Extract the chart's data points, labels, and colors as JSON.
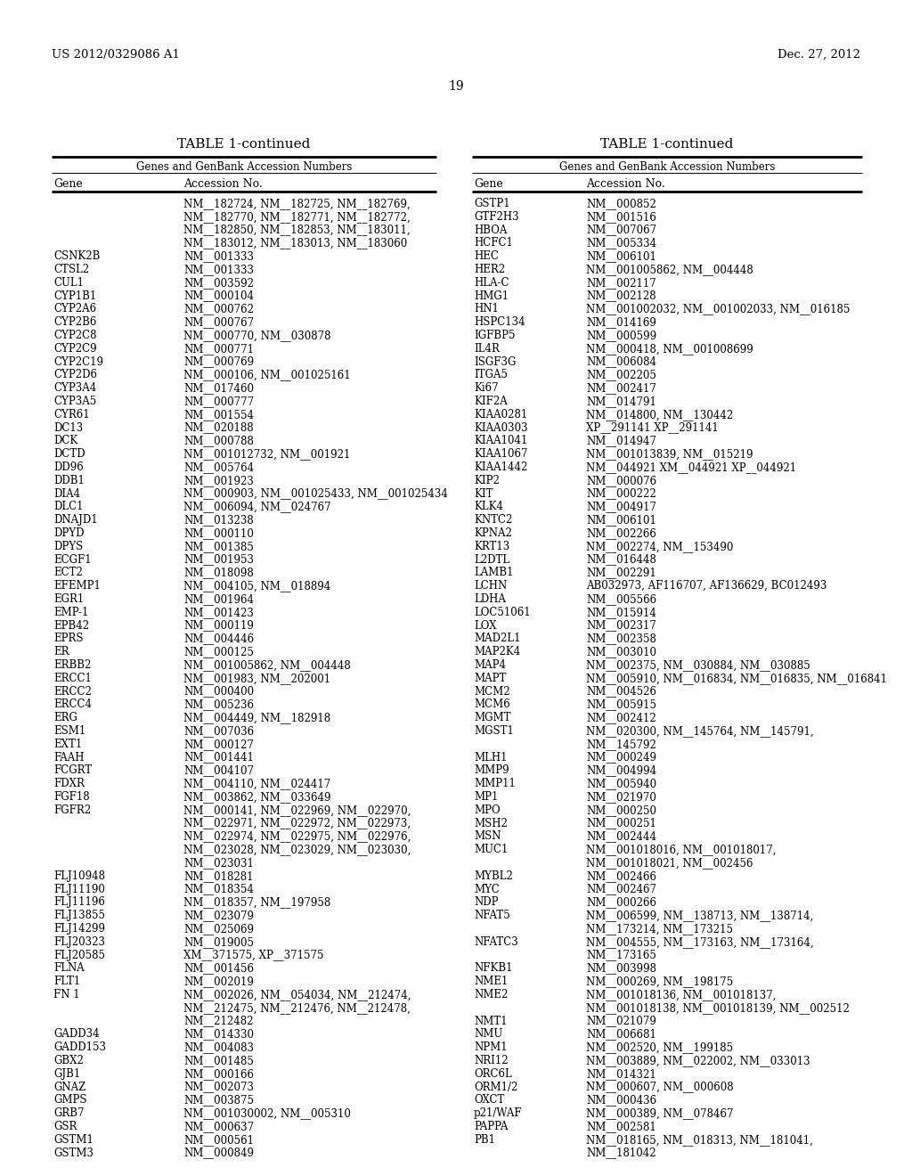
{
  "header_left": "US 2012/0329086 A1",
  "header_right": "Dec. 27, 2012",
  "page_number": "19",
  "table_title": "TABLE 1-continued",
  "left_table": [
    [
      "",
      "NM__182724, NM__182725, NM__182769,"
    ],
    [
      "",
      "NM__182770, NM__182771, NM__182772,"
    ],
    [
      "",
      "NM__182850, NM__182853, NM__183011,"
    ],
    [
      "",
      "NM__183012, NM__183013, NM__183060"
    ],
    [
      "CSNK2B",
      "NM__001333"
    ],
    [
      "CTSL2",
      "NM__001333"
    ],
    [
      "CUL1",
      "NM__003592"
    ],
    [
      "CYP1B1",
      "NM__000104"
    ],
    [
      "CYP2A6",
      "NM__000762"
    ],
    [
      "CYP2B6",
      "NM__000767"
    ],
    [
      "CYP2C8",
      "NM__000770, NM__030878"
    ],
    [
      "CYP2C9",
      "NM__000771"
    ],
    [
      "CYP2C19",
      "NM__000769"
    ],
    [
      "CYP2D6",
      "NM__000106, NM__001025161"
    ],
    [
      "CYP3A4",
      "NM__017460"
    ],
    [
      "CYP3A5",
      "NM__000777"
    ],
    [
      "CYR61",
      "NM__001554"
    ],
    [
      "DC13",
      "NM__020188"
    ],
    [
      "DCK",
      "NM__000788"
    ],
    [
      "DCTD",
      "NM__001012732, NM__001921"
    ],
    [
      "DD96",
      "NM__005764"
    ],
    [
      "DDB1",
      "NM__001923"
    ],
    [
      "DIA4",
      "NM__000903, NM__001025433, NM__001025434"
    ],
    [
      "DLC1",
      "NM__006094, NM__024767"
    ],
    [
      "DNAJD1",
      "NM__013238"
    ],
    [
      "DPYD",
      "NM__000110"
    ],
    [
      "DPYS",
      "NM__001385"
    ],
    [
      "ECGF1",
      "NM__001953"
    ],
    [
      "ECT2",
      "NM__018098"
    ],
    [
      "EFEMP1",
      "NM__004105, NM__018894"
    ],
    [
      "EGR1",
      "NM__001964"
    ],
    [
      "EMP-1",
      "NM__001423"
    ],
    [
      "EPB42",
      "NM__000119"
    ],
    [
      "EPRS",
      "NM__004446"
    ],
    [
      "ER",
      "NM__000125"
    ],
    [
      "ERBB2",
      "NM__001005862, NM__004448"
    ],
    [
      "ERCC1",
      "NM__001983, NM__202001"
    ],
    [
      "ERCC2",
      "NM__000400"
    ],
    [
      "ERCC4",
      "NM__005236"
    ],
    [
      "ERG",
      "NM__004449, NM__182918"
    ],
    [
      "ESM1",
      "NM__007036"
    ],
    [
      "EXT1",
      "NM__000127"
    ],
    [
      "FAAH",
      "NM__001441"
    ],
    [
      "FCGRT",
      "NM__004107"
    ],
    [
      "FDXR",
      "NM__004110, NM__024417"
    ],
    [
      "FGF18",
      "NM__003862, NM__033649"
    ],
    [
      "FGFR2",
      "NM__000141, NM__022969, NM__022970,"
    ],
    [
      "",
      "NM__022971, NM__022972, NM__022973,"
    ],
    [
      "",
      "NM__022974, NM__022975, NM__022976,"
    ],
    [
      "",
      "NM__023028, NM__023029, NM__023030,"
    ],
    [
      "",
      "NM__023031"
    ],
    [
      "FLJ10948",
      "NM__018281"
    ],
    [
      "FLJ11190",
      "NM__018354"
    ],
    [
      "FLJ11196",
      "NM__018357, NM__197958"
    ],
    [
      "FLJ13855",
      "NM__023079"
    ],
    [
      "FLJ14299",
      "NM__025069"
    ],
    [
      "FLJ20323",
      "NM__019005"
    ],
    [
      "FLJ20585",
      "XM__371575, XP__371575"
    ],
    [
      "FLNA",
      "NM__001456"
    ],
    [
      "FLT1",
      "NM__002019"
    ],
    [
      "FN 1",
      "NM__002026, NM__054034, NM__212474,"
    ],
    [
      "",
      "NM__212475, NM__212476, NM__212478,"
    ],
    [
      "",
      "NM__212482"
    ],
    [
      "GADD34",
      "NM__014330"
    ],
    [
      "GADD153",
      "NM__004083"
    ],
    [
      "GBX2",
      "NM__001485"
    ],
    [
      "GJB1",
      "NM__000166"
    ],
    [
      "GNAZ",
      "NM__002073"
    ],
    [
      "GMPS",
      "NM__003875"
    ],
    [
      "GRB7",
      "NM__001030002, NM__005310"
    ],
    [
      "GSR",
      "NM__000637"
    ],
    [
      "GSTM1",
      "NM__000561"
    ],
    [
      "GSTM3",
      "NM__000849"
    ]
  ],
  "right_table": [
    [
      "GSTP1",
      "NM__000852"
    ],
    [
      "GTF2H3",
      "NM__001516"
    ],
    [
      "HBOA",
      "NM__007067"
    ],
    [
      "HCFC1",
      "NM__005334"
    ],
    [
      "HEC",
      "NM__006101"
    ],
    [
      "HER2",
      "NM__001005862, NM__004448"
    ],
    [
      "HLA-C",
      "NM__002117"
    ],
    [
      "HMG1",
      "NM__002128"
    ],
    [
      "HN1",
      "NM__001002032, NM__001002033, NM__016185"
    ],
    [
      "HSPC134",
      "NM__014169"
    ],
    [
      "IGFBP5",
      "NM__000599"
    ],
    [
      "IL4R",
      "NM__000418, NM__001008699"
    ],
    [
      "ISGF3G",
      "NM__006084"
    ],
    [
      "ITGA5",
      "NM__002205"
    ],
    [
      "Ki67",
      "NM__002417"
    ],
    [
      "KIF2A",
      "NM__014791"
    ],
    [
      "KIAA0281",
      "NM__014800, NM__130442"
    ],
    [
      "KIAA0303",
      "XP__291141 XP__291141"
    ],
    [
      "KIAA1041",
      "NM__014947"
    ],
    [
      "KIAA1067",
      "NM__001013839, NM__015219"
    ],
    [
      "KIAA1442",
      "NM__044921 XM__044921 XP__044921"
    ],
    [
      "KIP2",
      "NM__000076"
    ],
    [
      "KIT",
      "NM__000222"
    ],
    [
      "KLK4",
      "NM__004917"
    ],
    [
      "KNTC2",
      "NM__006101"
    ],
    [
      "KPNA2",
      "NM__002266"
    ],
    [
      "KRT13",
      "NM__002274, NM__153490"
    ],
    [
      "L2DTL",
      "NM__016448"
    ],
    [
      "LAMB1",
      "NM__002291"
    ],
    [
      "LCHN",
      "AB032973, AF116707, AF136629, BC012493"
    ],
    [
      "LDHA",
      "NM__005566"
    ],
    [
      "LOC51061",
      "NM__015914"
    ],
    [
      "LOX",
      "NM__002317"
    ],
    [
      "MAD2L1",
      "NM__002358"
    ],
    [
      "MAP2K4",
      "NM__003010"
    ],
    [
      "MAP4",
      "NM__002375, NM__030884, NM__030885"
    ],
    [
      "MAPT",
      "NM__005910, NM__016834, NM__016835, NM__016841"
    ],
    [
      "MCM2",
      "NM__004526"
    ],
    [
      "MCM6",
      "NM__005915"
    ],
    [
      "MGMT",
      "NM__002412"
    ],
    [
      "MGST1",
      "NM__020300, NM__145764, NM__145791,"
    ],
    [
      "",
      "NM__145792"
    ],
    [
      "MLH1",
      "NM__000249"
    ],
    [
      "MMP9",
      "NM__004994"
    ],
    [
      "MMP11",
      "NM__005940"
    ],
    [
      "MP1",
      "NM__021970"
    ],
    [
      "MPO",
      "NM__000250"
    ],
    [
      "MSH2",
      "NM__000251"
    ],
    [
      "MSN",
      "NM__002444"
    ],
    [
      "MUC1",
      "NM__001018016, NM__001018017,"
    ],
    [
      "",
      "NM__001018021, NM__002456"
    ],
    [
      "MYBL2",
      "NM__002466"
    ],
    [
      "MYC",
      "NM__002467"
    ],
    [
      "NDP",
      "NM__000266"
    ],
    [
      "NFAT5",
      "NM__006599, NM__138713, NM__138714,"
    ],
    [
      "",
      "NM__173214, NM__173215"
    ],
    [
      "NFATC3",
      "NM__004555, NM__173163, NM__173164,"
    ],
    [
      "",
      "NM__173165"
    ],
    [
      "NFKB1",
      "NM__003998"
    ],
    [
      "NME1",
      "NM__000269, NM__198175"
    ],
    [
      "NME2",
      "NM__001018136, NM__001018137,"
    ],
    [
      "",
      "NM__001018138, NM__001018139, NM__002512"
    ],
    [
      "NMT1",
      "NM__021079"
    ],
    [
      "NMU",
      "NM__006681"
    ],
    [
      "NPM1",
      "NM__002520, NM__199185"
    ],
    [
      "NRI12",
      "NM__003889, NM__022002, NM__033013"
    ],
    [
      "ORC6L",
      "NM__014321"
    ],
    [
      "ORM1/2",
      "NM__000607, NM__000608"
    ],
    [
      "OXCT",
      "NM__000436"
    ],
    [
      "p21/WAF",
      "NM__000389, NM__078467"
    ],
    [
      "PAPPA",
      "NM__002581"
    ],
    [
      "PB1",
      "NM__018165, NM__018313, NM__181041,"
    ],
    [
      "",
      "NM__181042"
    ]
  ]
}
